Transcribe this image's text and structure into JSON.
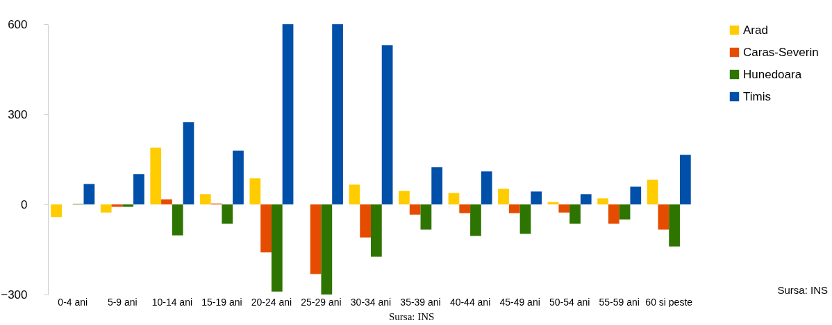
{
  "chart_data": {
    "type": "bar",
    "categories": [
      "0-4 ani",
      "5-9 ani",
      "10-14 ani",
      "15-19 ani",
      "20-24 ani",
      "25-29 ani",
      "30-34 ani",
      "35-39 ani",
      "40-44 ani",
      "45-49 ani",
      "50-54 ani",
      "55-59 ani",
      "60 si peste"
    ],
    "series": [
      {
        "name": "Arad",
        "color": "#ffcc00",
        "values": [
          -42,
          -27,
          189,
          34,
          87,
          null,
          66,
          45,
          38,
          52,
          8,
          20,
          82
        ]
      },
      {
        "name": "Caras-Severin",
        "color": "#e64c00",
        "values": [
          0,
          -8,
          17,
          3,
          -160,
          -232,
          -110,
          -34,
          -29,
          -29,
          -27,
          -64,
          -84
        ]
      },
      {
        "name": "Hunedoara",
        "color": "#2e7400",
        "values": [
          2,
          -8,
          -103,
          -64,
          -290,
          -300,
          -174,
          -84,
          -105,
          -98,
          -64,
          -50,
          -140
        ]
      },
      {
        "name": "Timis",
        "color": "#004fa8",
        "values": [
          68,
          101,
          274,
          179,
          600,
          600,
          530,
          124,
          110,
          43,
          34,
          59,
          165
        ]
      }
    ],
    "ylim": [
      -300,
      600
    ],
    "yticks": [
      -300,
      0,
      300,
      600
    ],
    "grid": false,
    "legend": "right",
    "annotations": [
      "Sursa: INS",
      "Sursa: INS"
    ]
  }
}
